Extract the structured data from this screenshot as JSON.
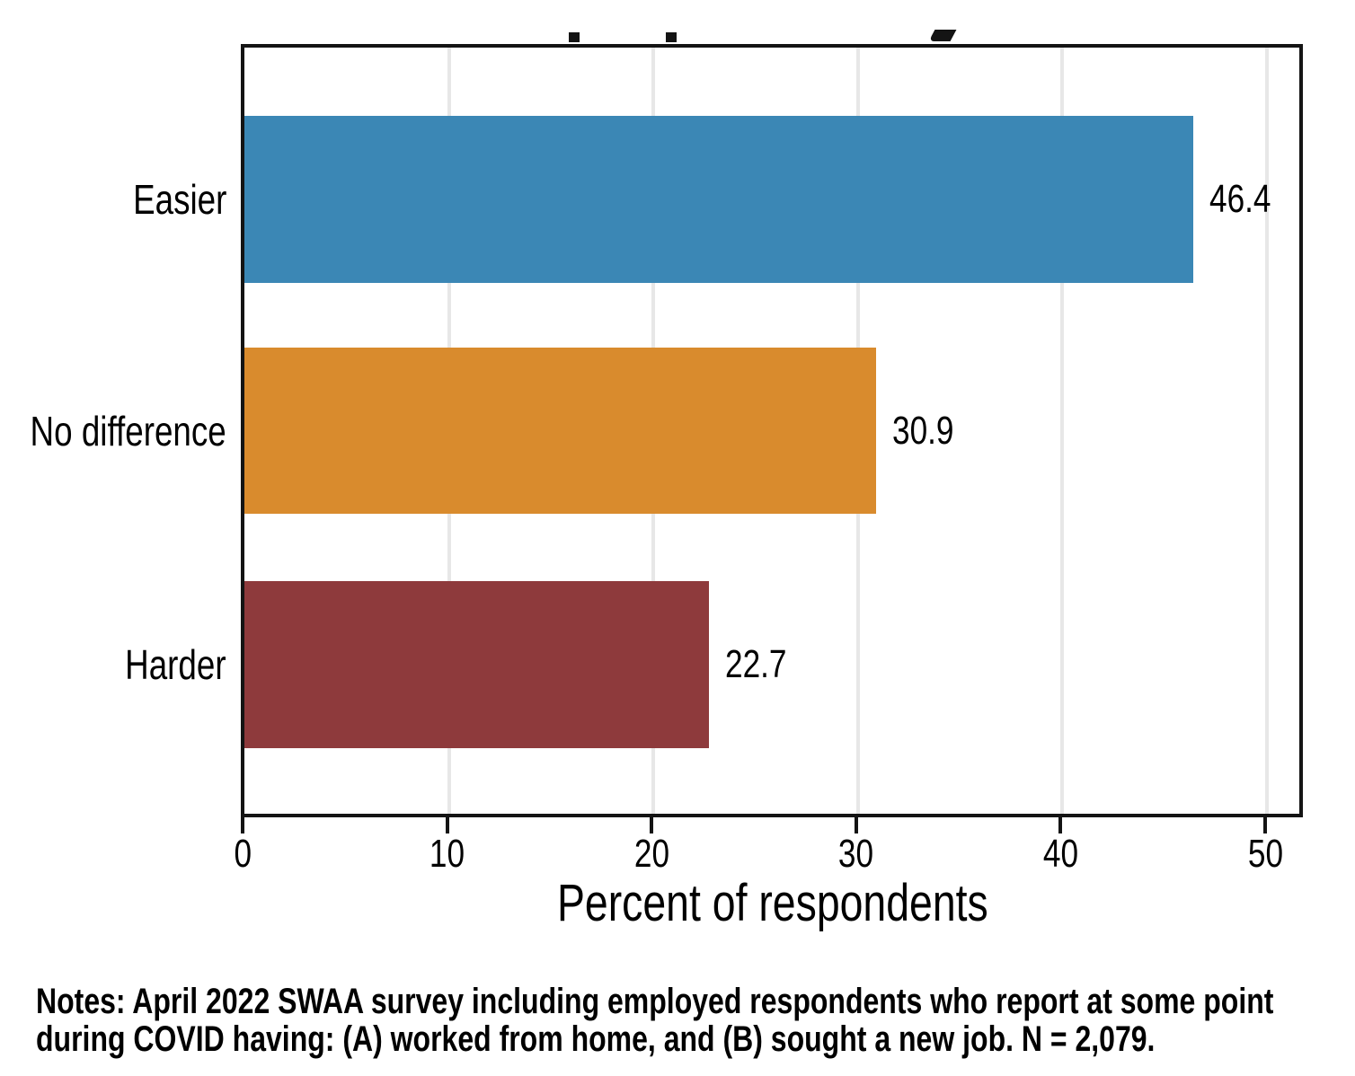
{
  "chart_data": {
    "type": "bar",
    "orientation": "horizontal",
    "categories": [
      "Easier",
      "No difference",
      "Harder"
    ],
    "values": [
      46.4,
      30.9,
      22.7
    ],
    "value_labels": [
      "46.4",
      "30.9",
      "22.7"
    ],
    "bar_colors": [
      "#3b87b5",
      "#d98b2d",
      "#8e3a3c"
    ],
    "xlabel": "Percent of respondents",
    "xticks": [
      0,
      10,
      20,
      30,
      40,
      50
    ],
    "xlim": [
      0,
      51.6
    ],
    "grid": "vertical",
    "gridline_color": "#e7e7e7",
    "frame_color": "#141414",
    "background_color": "#ffffff",
    "title_cropped_at_top": true
  },
  "notes": {
    "lines": [
      "Notes: April 2022 SWAA survey including employed respondents who report at some point",
      "during COVID having: (A) worked from home, and (B) sought a new job. N = 2,079."
    ]
  }
}
